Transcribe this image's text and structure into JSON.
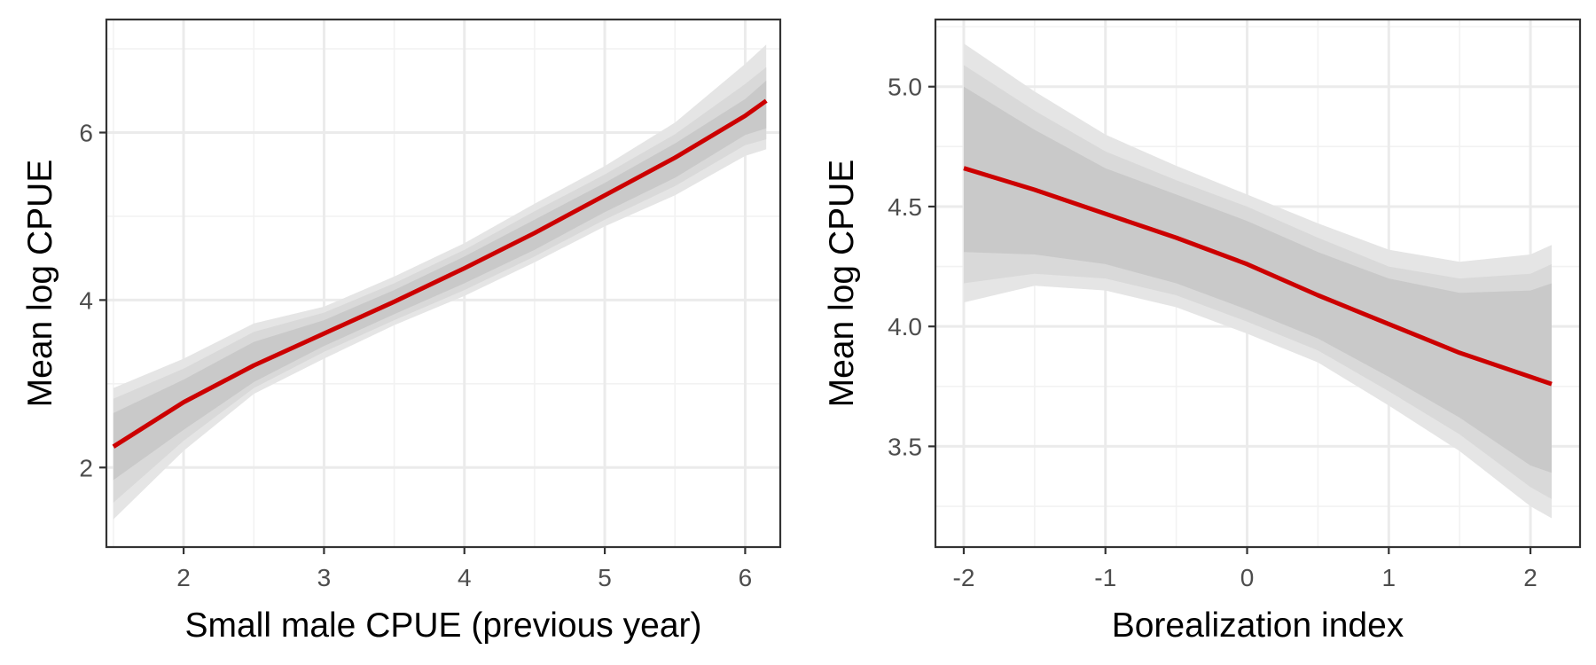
{
  "colors": {
    "line": "#cc0000",
    "band_outer": "#e5e5e5",
    "band_middle": "#d9d9d9",
    "band_inner": "#c9c9c9"
  },
  "chart_data": [
    {
      "type": "line",
      "xlabel": "Small male CPUE (previous year)",
      "ylabel": "Mean log CPUE",
      "xlim": [
        1.45,
        6.25
      ],
      "ylim": [
        1.05,
        7.35
      ],
      "x_ticks": [
        2,
        3,
        4,
        5,
        6
      ],
      "x_tick_labels": [
        "2",
        "3",
        "4",
        "5",
        "6"
      ],
      "y_ticks": [
        2,
        4,
        6
      ],
      "y_tick_labels": [
        "2",
        "4",
        "6"
      ],
      "grid": true,
      "legend": "none",
      "x": [
        1.5,
        2.0,
        2.5,
        3.0,
        3.5,
        4.0,
        4.5,
        5.0,
        5.5,
        6.0,
        6.15
      ],
      "fit": [
        2.25,
        2.78,
        3.22,
        3.6,
        3.98,
        4.38,
        4.8,
        5.25,
        5.7,
        6.2,
        6.38
      ],
      "band_outer": {
        "lower": [
          1.38,
          2.2,
          2.88,
          3.3,
          3.7,
          4.05,
          4.45,
          4.88,
          5.25,
          5.72,
          5.8
        ],
        "upper": [
          2.95,
          3.3,
          3.72,
          3.92,
          4.28,
          4.68,
          5.15,
          5.6,
          6.12,
          6.82,
          7.05
        ]
      },
      "band_middle": {
        "lower": [
          1.58,
          2.32,
          2.95,
          3.38,
          3.76,
          4.12,
          4.52,
          4.96,
          5.36,
          5.85,
          5.92
        ],
        "upper": [
          2.82,
          3.18,
          3.62,
          3.85,
          4.2,
          4.6,
          5.06,
          5.5,
          5.98,
          6.58,
          6.78
        ]
      },
      "band_inner": {
        "lower": [
          1.85,
          2.45,
          3.02,
          3.45,
          3.83,
          4.2,
          4.6,
          5.05,
          5.46,
          5.97,
          6.05
        ],
        "upper": [
          2.65,
          3.05,
          3.5,
          3.76,
          4.12,
          4.52,
          4.96,
          5.4,
          5.87,
          6.4,
          6.62
        ]
      }
    },
    {
      "type": "line",
      "xlabel": "Borealization index",
      "ylabel": "Mean log CPUE",
      "xlim": [
        -2.2,
        2.35
      ],
      "ylim": [
        3.08,
        5.28
      ],
      "x_ticks": [
        -2,
        -1,
        0,
        1,
        2
      ],
      "x_tick_labels": [
        "-2",
        "-1",
        "0",
        "1",
        "2"
      ],
      "y_ticks": [
        3.5,
        4.0,
        4.5,
        5.0
      ],
      "y_tick_labels": [
        "3.5",
        "4.0",
        "4.5",
        "5.0"
      ],
      "grid": true,
      "legend": "none",
      "x": [
        -2.0,
        -1.5,
        -1.0,
        -0.5,
        0.0,
        0.5,
        1.0,
        1.5,
        2.0,
        2.15
      ],
      "fit": [
        4.66,
        4.57,
        4.47,
        4.37,
        4.26,
        4.13,
        4.01,
        3.89,
        3.79,
        3.76
      ],
      "band_outer": {
        "lower": [
          4.1,
          4.17,
          4.15,
          4.08,
          3.97,
          3.85,
          3.67,
          3.48,
          3.25,
          3.2
        ],
        "upper": [
          5.18,
          4.98,
          4.8,
          4.67,
          4.55,
          4.43,
          4.32,
          4.27,
          4.3,
          4.34
        ]
      },
      "band_middle": {
        "lower": [
          4.18,
          4.22,
          4.2,
          4.13,
          4.02,
          3.9,
          3.73,
          3.55,
          3.33,
          3.28
        ],
        "upper": [
          5.09,
          4.9,
          4.73,
          4.61,
          4.5,
          4.37,
          4.25,
          4.2,
          4.22,
          4.26
        ]
      },
      "band_inner": {
        "lower": [
          4.31,
          4.3,
          4.26,
          4.18,
          4.07,
          3.95,
          3.79,
          3.62,
          3.42,
          3.39
        ],
        "upper": [
          5.0,
          4.82,
          4.66,
          4.55,
          4.44,
          4.31,
          4.2,
          4.14,
          4.15,
          4.18
        ]
      }
    }
  ]
}
